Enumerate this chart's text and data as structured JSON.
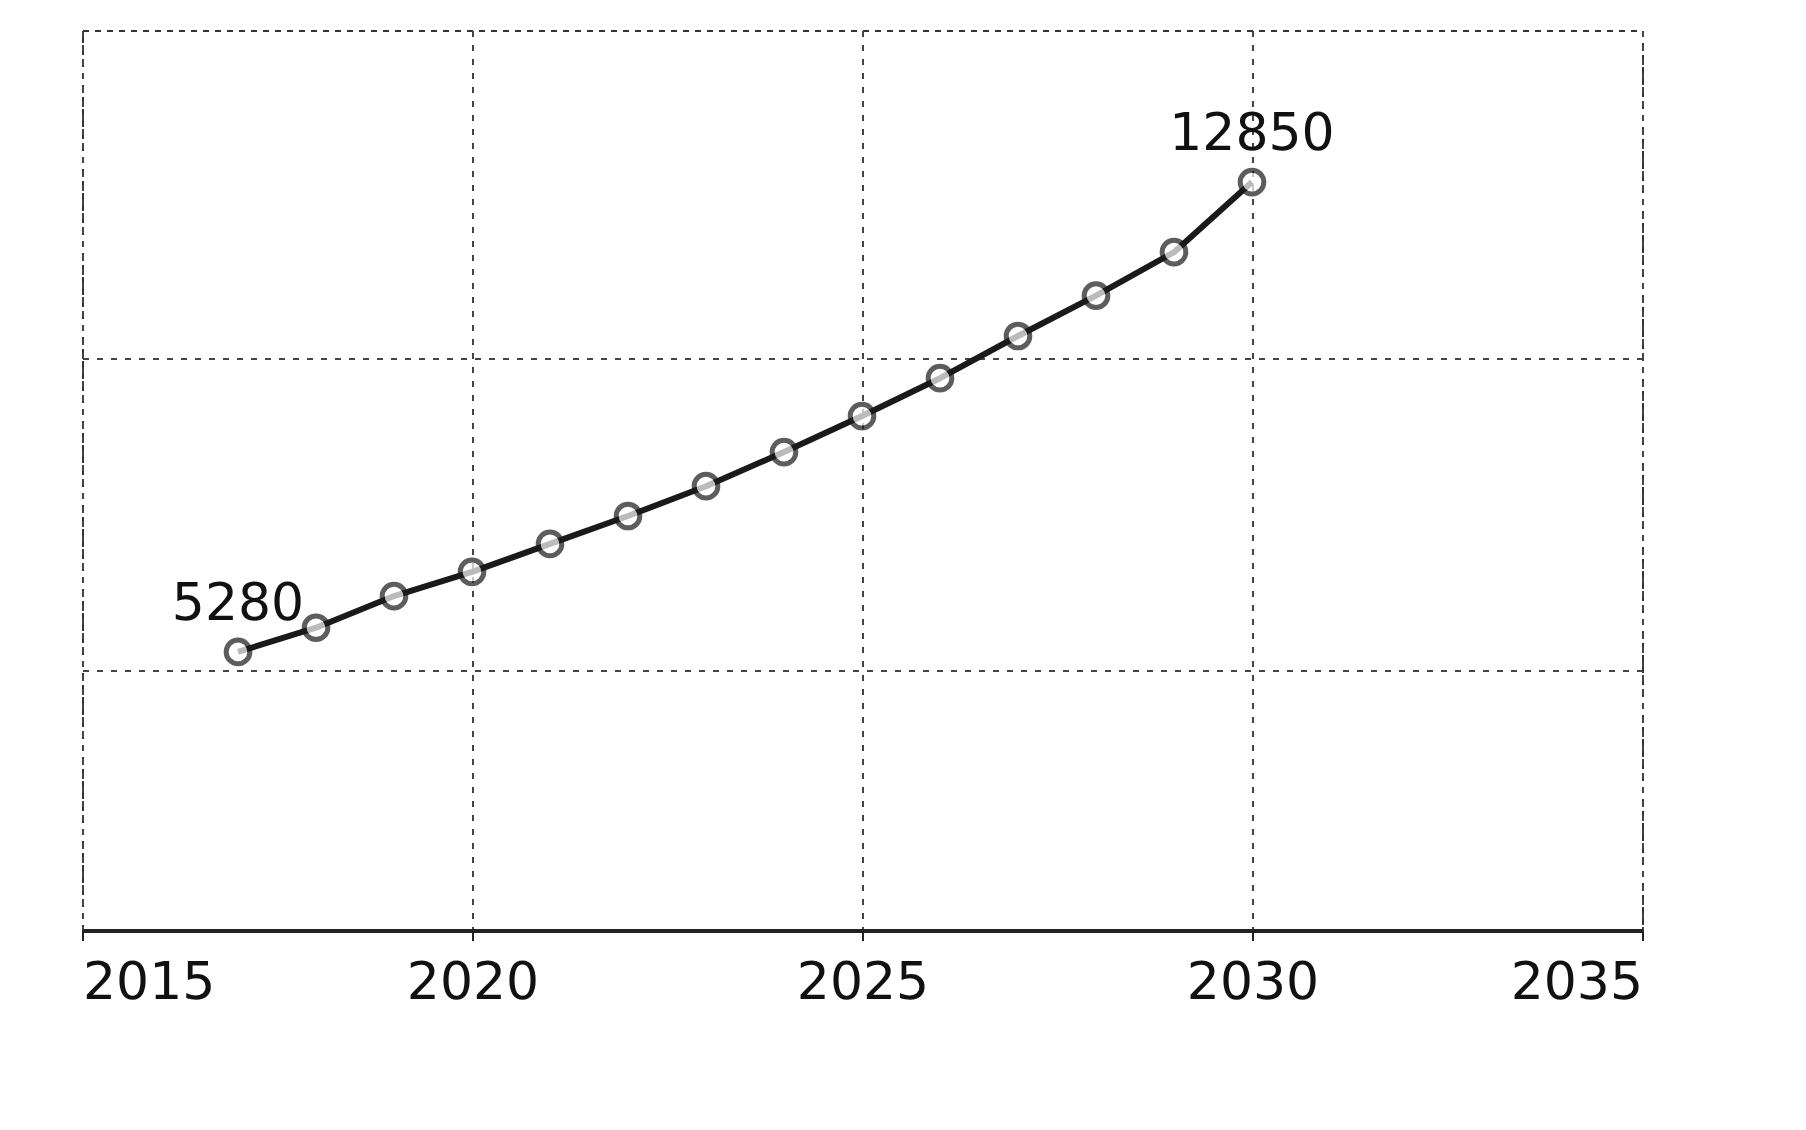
{
  "chart_data": {
    "type": "line",
    "x": [
      2017,
      2018,
      2019,
      2020,
      2021,
      2022,
      2023,
      2024,
      2025,
      2026,
      2027,
      2028,
      2029,
      2030
    ],
    "series": [
      {
        "color": "#1a1a1a",
        "values": [
          5280,
          5670,
          6180,
          6570,
          7020,
          7470,
          7950,
          8500,
          9080,
          9690,
          10370,
          11020,
          11720,
          12850
        ],
        "value_labels": [
          "5280",
          null,
          null,
          null,
          null,
          null,
          null,
          null,
          null,
          null,
          null,
          null,
          null,
          "12850"
        ]
      }
    ],
    "xlim": [
      2015,
      2035
    ],
    "xticks": [
      2015,
      2020,
      2025,
      2030,
      2035
    ],
    "ylim": [
      800,
      15300
    ],
    "yticks": [
      {
        "value": 5000,
        "label": null
      },
      {
        "value": 10000,
        "label": null
      }
    ],
    "tick_labels": "x",
    "grid": true,
    "marker": "circle",
    "line_style": "solid"
  }
}
